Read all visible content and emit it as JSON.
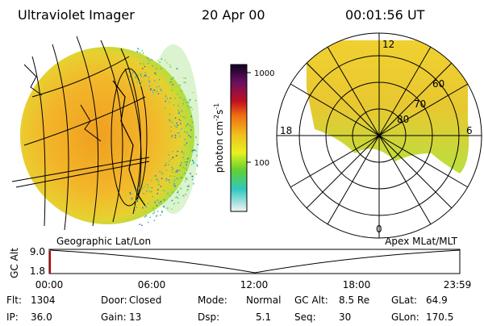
{
  "header": {
    "title": "Ultraviolet Imager",
    "date": "20 Apr 00",
    "time": "00:01:56 UT"
  },
  "colorbar": {
    "label": "photon cm",
    "exponent1": "-2",
    "label2": "s",
    "exponent2": "-1",
    "ticks": [
      "1000",
      "100"
    ]
  },
  "polar": {
    "mlt_labels": {
      "top": "12",
      "left": "18",
      "right": "6",
      "bottom": "0"
    },
    "lat_labels": [
      "60",
      "70",
      "80"
    ]
  },
  "timeline": {
    "left_label": "Geographic Lat/Lon",
    "right_label": "Apex MLat/MLT",
    "y_label": "GC Alt",
    "y_ticks": [
      "9.0",
      "1.8"
    ],
    "x_ticks": [
      "00:00",
      "06:00",
      "12:00",
      "18:00",
      "23:59"
    ]
  },
  "info": [
    [
      {
        "label": "Flt:",
        "value": "1304"
      },
      {
        "label": "Door:",
        "value": "Closed"
      },
      {
        "label": "Mode:",
        "value": "Normal"
      },
      {
        "label": "GC Alt:",
        "value": "8.5 Re"
      },
      {
        "label": "GLat:",
        "value": "64.9"
      }
    ],
    [
      {
        "label": "IP:",
        "value": "36.0"
      },
      {
        "label": "Gain:",
        "value": "13"
      },
      {
        "label": "Dsp:",
        "value": "5.1"
      },
      {
        "label": "Seq:",
        "value": "30"
      },
      {
        "label": "GLon:",
        "value": "170.5"
      }
    ]
  ]
}
